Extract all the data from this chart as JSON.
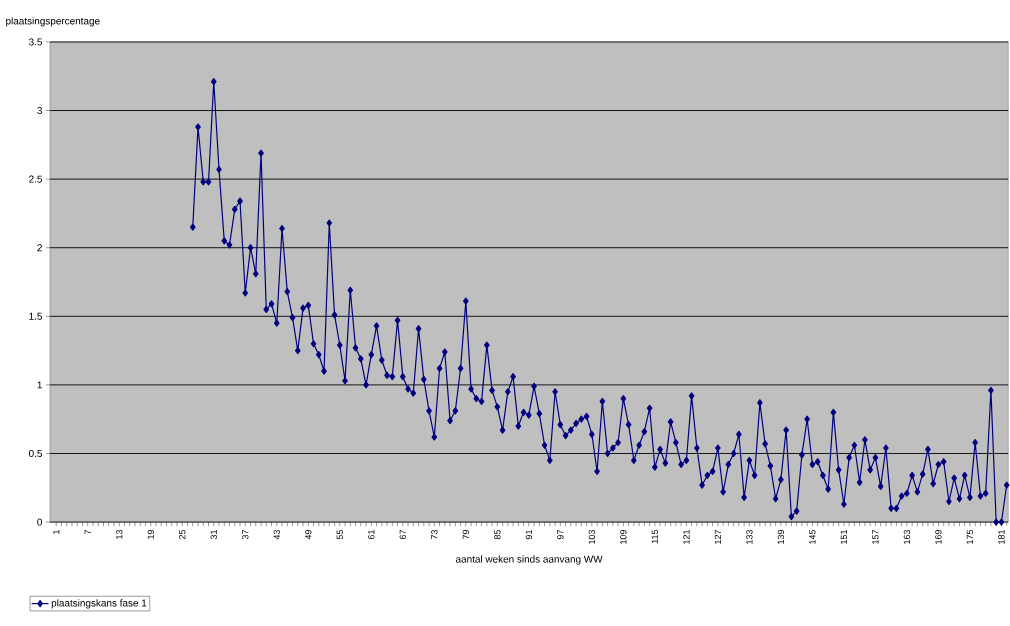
{
  "chart_data": {
    "type": "line",
    "ylabel": "plaatsingspercentage",
    "xlabel": "aantal weken sinds aanvang WW",
    "categories": [
      "1",
      null,
      null,
      null,
      null,
      null,
      "7",
      null,
      null,
      null,
      null,
      null,
      "13",
      null,
      null,
      null,
      null,
      null,
      "19",
      null,
      null,
      null,
      null,
      null,
      "25",
      null,
      null,
      null,
      null,
      null,
      "31",
      null,
      null,
      null,
      null,
      null,
      "37",
      null,
      null,
      null,
      null,
      null,
      "43",
      null,
      null,
      null,
      null,
      null,
      "49",
      null,
      null,
      null,
      null,
      null,
      "55",
      null,
      null,
      null,
      null,
      null,
      "61",
      null,
      null,
      null,
      null,
      null,
      "67",
      null,
      null,
      null,
      null,
      null,
      "73",
      null,
      null,
      null,
      null,
      null,
      "79",
      null,
      null,
      null,
      null,
      null,
      "85",
      null,
      null,
      null,
      null,
      null,
      "91",
      null,
      null,
      null,
      null,
      null,
      "97",
      null,
      null,
      null,
      null,
      null,
      "103",
      null,
      null,
      null,
      null,
      null,
      "109",
      null,
      null,
      null,
      null,
      null,
      "115",
      null,
      null,
      null,
      null,
      null,
      "121",
      null,
      null,
      null,
      null,
      null,
      "127",
      null,
      null,
      null,
      null,
      null,
      "133",
      null,
      null,
      null,
      null,
      null,
      "139",
      null,
      null,
      null,
      null,
      null,
      "145",
      null,
      null,
      null,
      null,
      null,
      "151",
      null,
      null,
      null,
      null,
      null,
      "157",
      null,
      null,
      null,
      null,
      null,
      "163",
      null,
      null,
      null,
      null,
      null,
      "169",
      null,
      null,
      null,
      null,
      null,
      "175",
      null,
      null,
      null,
      null,
      null,
      "181",
      null
    ],
    "series": [
      {
        "name": "plaatsingskans fase 1",
        "color": "#000080",
        "values": [
          null,
          null,
          null,
          null,
          null,
          null,
          null,
          null,
          null,
          null,
          null,
          null,
          null,
          null,
          null,
          null,
          null,
          null,
          null,
          null,
          null,
          null,
          null,
          null,
          null,
          null,
          2.15,
          2.88,
          2.48,
          2.48,
          3.21,
          2.57,
          2.05,
          2.02,
          2.28,
          2.34,
          1.67,
          2.0,
          1.81,
          2.69,
          1.55,
          1.59,
          1.45,
          2.14,
          1.68,
          1.49,
          1.25,
          1.56,
          1.58,
          1.3,
          1.22,
          1.1,
          2.18,
          1.51,
          1.29,
          1.03,
          1.69,
          1.27,
          1.19,
          1.0,
          1.22,
          1.43,
          1.18,
          1.07,
          1.06,
          1.47,
          1.06,
          0.97,
          0.94,
          1.41,
          1.04,
          0.81,
          0.62,
          1.12,
          1.24,
          0.74,
          0.81,
          1.12,
          1.61,
          0.97,
          0.9,
          0.88,
          1.29,
          0.96,
          0.84,
          0.67,
          0.95,
          1.06,
          0.7,
          0.8,
          0.78,
          0.99,
          0.79,
          0.56,
          0.45,
          0.95,
          0.71,
          0.63,
          0.67,
          0.72,
          0.75,
          0.77,
          0.64,
          0.37,
          0.88,
          0.5,
          0.54,
          0.58,
          0.9,
          0.71,
          0.45,
          0.56,
          0.66,
          0.83,
          0.4,
          0.53,
          0.43,
          0.73,
          0.58,
          0.42,
          0.45,
          0.92,
          0.54,
          0.27,
          0.34,
          0.37,
          0.54,
          0.22,
          0.42,
          0.5,
          0.64,
          0.18,
          0.45,
          0.34,
          0.87,
          0.57,
          0.41,
          0.17,
          0.31,
          0.67,
          0.04,
          0.08,
          0.49,
          0.75,
          0.42,
          0.44,
          0.34,
          0.24,
          0.8,
          0.38,
          0.13,
          0.47,
          0.56,
          0.29,
          0.6,
          0.38,
          0.47,
          0.26,
          0.54,
          0.1,
          0.1,
          0.19,
          0.21,
          0.34,
          0.22,
          0.35,
          0.53,
          0.28,
          0.42,
          0.44,
          0.15,
          0.32,
          0.17,
          0.34,
          0.18,
          0.58,
          0.19,
          0.21,
          0.96,
          0.0,
          0.0,
          0.27
        ]
      }
    ],
    "ylim": [
      0,
      3.5
    ],
    "yticks": [
      0,
      0.5,
      1,
      1.5,
      2,
      2.5,
      3,
      3.5
    ],
    "grid": "y",
    "legend": "bottom left",
    "marker": "diamond",
    "line_style": "solid"
  }
}
